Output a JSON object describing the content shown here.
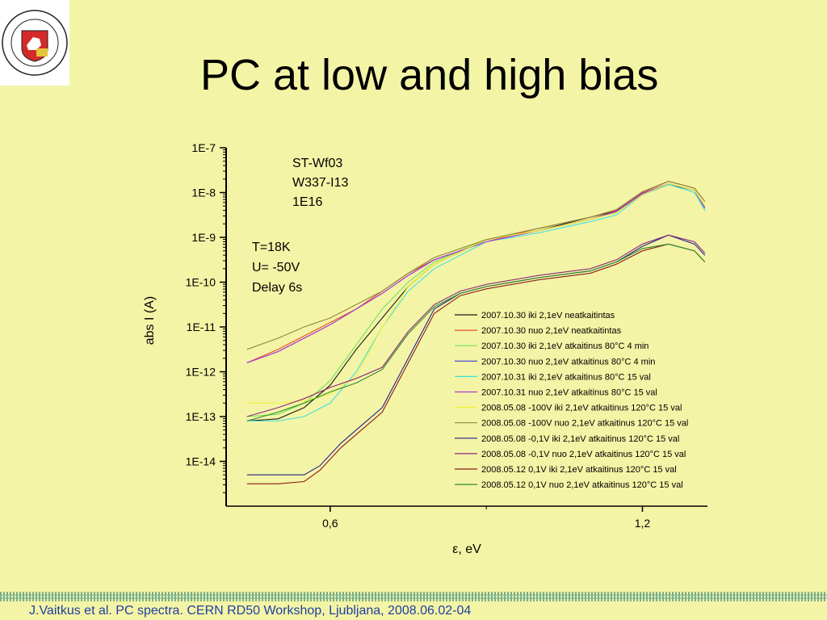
{
  "slide": {
    "title": "PC at low and high bias",
    "footer": "J.Vaitkus et al. PC spectra. CERN RD50 Workshop, Ljubljana, 2008.06.02-04",
    "logo": {
      "ring_top_text": "VILNIAUS UNIVERSITETAS",
      "ring_bottom_text": "UNIVERSITAS VILNENSIS",
      "year": "1579"
    }
  },
  "chart_data": {
    "type": "line",
    "xlabel": "ε, eV",
    "ylabel": "abs I (A)",
    "xlim": [
      0.4,
      1.325
    ],
    "ylim_log10": [
      -15,
      -7
    ],
    "y_scale": "log",
    "x_ticks": [
      "0,6",
      "1,2"
    ],
    "y_ticks": [
      "1E-7",
      "1E-8",
      "1E-9",
      "1E-10",
      "1E-11",
      "1E-12",
      "1E-13",
      "1E-14"
    ],
    "annotations": {
      "sample": [
        "ST-Wf03",
        "W337-I13",
        "1E16"
      ],
      "conditions": [
        "T=18K",
        "U= -50V",
        "Delay 6s"
      ]
    },
    "legend_position": "right",
    "series": [
      {
        "name": "2007.10.30 iki 2,1eV neatkaitintas",
        "color": "#1a1a1a",
        "x": [
          0.44,
          0.5,
          0.55,
          0.6,
          0.65,
          0.7,
          0.75,
          0.8,
          0.9,
          1.0,
          1.1,
          1.15,
          1.2,
          1.25,
          1.3,
          1.32
        ],
        "log_y": [
          -13.1,
          -13.05,
          -12.8,
          -12.3,
          -11.5,
          -10.8,
          -10.1,
          -9.6,
          -9.05,
          -8.85,
          -8.55,
          -8.42,
          -8.05,
          -7.82,
          -7.95,
          -8.3
        ]
      },
      {
        "name": "2007.10.30 nuo 2,1eV neatkaitintas",
        "color": "#e8502a",
        "x": [
          0.44,
          0.5,
          0.55,
          0.6,
          0.65,
          0.7,
          0.75,
          0.8,
          0.9,
          1.0,
          1.1,
          1.15,
          1.2,
          1.25,
          1.3,
          1.32
        ],
        "log_y": [
          -11.8,
          -11.5,
          -11.2,
          -10.9,
          -10.6,
          -10.2,
          -9.8,
          -9.5,
          -9.1,
          -8.8,
          -8.55,
          -8.4,
          -8.0,
          -7.75,
          -7.9,
          -8.2
        ]
      },
      {
        "name": "2007.10.30 iki 2,1eV atkaitinus 80°C 4 min",
        "color": "#6fe35a",
        "x": [
          0.44,
          0.5,
          0.55,
          0.6,
          0.65,
          0.7,
          0.75,
          0.8,
          0.9,
          1.0,
          1.1,
          1.15,
          1.2,
          1.25,
          1.3,
          1.32
        ],
        "log_y": [
          -13.0,
          -12.95,
          -12.7,
          -12.2,
          -11.4,
          -10.6,
          -10.0,
          -9.55,
          -9.05,
          -8.85,
          -8.6,
          -8.45,
          -8.05,
          -7.8,
          -7.95,
          -8.4
        ]
      },
      {
        "name": "2007.10.30 nuo 2,1eV atkaitinus 80°C 4 min",
        "color": "#3e3ee0",
        "x": [
          0.44,
          0.5,
          0.55,
          0.6,
          0.65,
          0.7,
          0.75,
          0.8,
          0.9,
          1.0,
          1.1,
          1.15,
          1.2,
          1.25,
          1.3,
          1.32
        ],
        "log_y": [
          -11.8,
          -11.55,
          -11.25,
          -10.95,
          -10.6,
          -10.25,
          -9.85,
          -9.5,
          -9.1,
          -8.85,
          -8.6,
          -8.42,
          -8.02,
          -7.8,
          -7.95,
          -8.35
        ]
      },
      {
        "name": "2007.10.31 iki 2,1eV atkaitinus 80°C 15 val",
        "color": "#3fe0e0",
        "x": [
          0.44,
          0.5,
          0.55,
          0.6,
          0.65,
          0.7,
          0.75,
          0.8,
          0.9,
          1.0,
          1.1,
          1.15,
          1.2,
          1.25,
          1.3,
          1.32
        ],
        "log_y": [
          -13.1,
          -13.1,
          -13.0,
          -12.7,
          -12.0,
          -11.0,
          -10.2,
          -9.7,
          -9.1,
          -8.9,
          -8.65,
          -8.5,
          -8.05,
          -7.82,
          -8.0,
          -8.4
        ]
      },
      {
        "name": "2007.10.31 nuo 2,1eV atkaitinus 80°C 15 val",
        "color": "#b03ad8",
        "x": [
          0.44,
          0.5,
          0.55,
          0.6,
          0.65,
          0.7,
          0.75,
          0.8,
          0.9,
          1.0,
          1.1,
          1.15,
          1.2,
          1.25,
          1.3,
          1.32
        ],
        "log_y": [
          -11.8,
          -11.55,
          -11.25,
          -10.95,
          -10.6,
          -10.25,
          -9.85,
          -9.5,
          -9.1,
          -8.85,
          -8.6,
          -8.43,
          -8.03,
          -7.8,
          -7.95,
          -8.35
        ]
      },
      {
        "name": "2008.05.08 -100V iki 2,1eV atkaitinus 120°C 15 val",
        "color": "#f2f23a",
        "x": [
          0.44,
          0.5,
          0.55,
          0.6,
          0.65,
          0.7,
          0.75,
          0.8,
          0.9,
          1.0,
          1.1,
          1.15,
          1.2,
          1.25,
          1.3,
          1.32
        ],
        "log_y": [
          -12.7,
          -12.7,
          -12.65,
          -12.5,
          -12.1,
          -11.0,
          -10.1,
          -9.6,
          -9.05,
          -8.85,
          -8.6,
          -8.45,
          -8.05,
          -7.8,
          -7.95,
          -8.3
        ]
      },
      {
        "name": "2008.05.08 -100V nuo 2,1eV atkaitinus 120°C 15 val",
        "color": "#8a8a3a",
        "x": [
          0.44,
          0.5,
          0.55,
          0.6,
          0.65,
          0.7,
          0.75,
          0.8,
          0.9,
          1.0,
          1.1,
          1.15,
          1.2,
          1.25,
          1.3,
          1.32
        ],
        "log_y": [
          -11.5,
          -11.25,
          -11.0,
          -10.8,
          -10.5,
          -10.2,
          -9.8,
          -9.45,
          -9.05,
          -8.8,
          -8.55,
          -8.38,
          -7.98,
          -7.75,
          -7.9,
          -8.2
        ]
      },
      {
        "name": "2008.05.08 -0,1V iki 2,1eV atkaitinus 120°C 15 val",
        "color": "#23238a",
        "x": [
          0.44,
          0.5,
          0.55,
          0.58,
          0.62,
          0.66,
          0.7,
          0.75,
          0.8,
          0.85,
          0.9,
          1.0,
          1.1,
          1.15,
          1.2,
          1.25,
          1.3,
          1.32
        ],
        "log_y": [
          -14.3,
          -14.3,
          -14.3,
          -14.1,
          -13.6,
          -13.2,
          -12.8,
          -11.7,
          -10.6,
          -10.25,
          -10.1,
          -9.9,
          -9.75,
          -9.55,
          -9.2,
          -8.95,
          -9.15,
          -9.4
        ]
      },
      {
        "name": "2008.05.08 -0,1V nuo 2,1eV atkaitinus 120°C 15 val",
        "color": "#8a2a7a",
        "x": [
          0.44,
          0.5,
          0.55,
          0.6,
          0.65,
          0.7,
          0.75,
          0.8,
          0.85,
          0.9,
          1.0,
          1.1,
          1.15,
          1.2,
          1.25,
          1.3,
          1.32
        ],
        "log_y": [
          -13.0,
          -12.8,
          -12.6,
          -12.35,
          -12.15,
          -11.9,
          -11.1,
          -10.5,
          -10.2,
          -10.05,
          -9.85,
          -9.7,
          -9.5,
          -9.15,
          -8.95,
          -9.1,
          -9.35
        ]
      },
      {
        "name": "2008.05.12 0,1V iki 2,1eV atkaitinus 120°C 15 val",
        "color": "#8b1a1a",
        "x": [
          0.44,
          0.5,
          0.55,
          0.58,
          0.62,
          0.66,
          0.7,
          0.75,
          0.8,
          0.85,
          0.9,
          1.0,
          1.1,
          1.15,
          1.2,
          1.25,
          1.3,
          1.32
        ],
        "log_y": [
          -14.5,
          -14.5,
          -14.45,
          -14.2,
          -13.7,
          -13.3,
          -12.9,
          -11.8,
          -10.7,
          -10.3,
          -10.15,
          -9.95,
          -9.8,
          -9.6,
          -9.3,
          -9.15,
          -9.3,
          -9.55
        ]
      },
      {
        "name": "2008.05.12 0,1V nuo 2,1eV atkaitinus 120°C 15 val",
        "color": "#2c8a2c",
        "x": [
          0.44,
          0.5,
          0.55,
          0.6,
          0.65,
          0.7,
          0.75,
          0.8,
          0.85,
          0.9,
          1.0,
          1.1,
          1.15,
          1.2,
          1.25,
          1.3,
          1.32
        ],
        "log_y": [
          -13.1,
          -12.9,
          -12.7,
          -12.45,
          -12.25,
          -11.95,
          -11.15,
          -10.55,
          -10.25,
          -10.1,
          -9.9,
          -9.75,
          -9.55,
          -9.25,
          -9.15,
          -9.3,
          -9.55
        ]
      }
    ]
  }
}
